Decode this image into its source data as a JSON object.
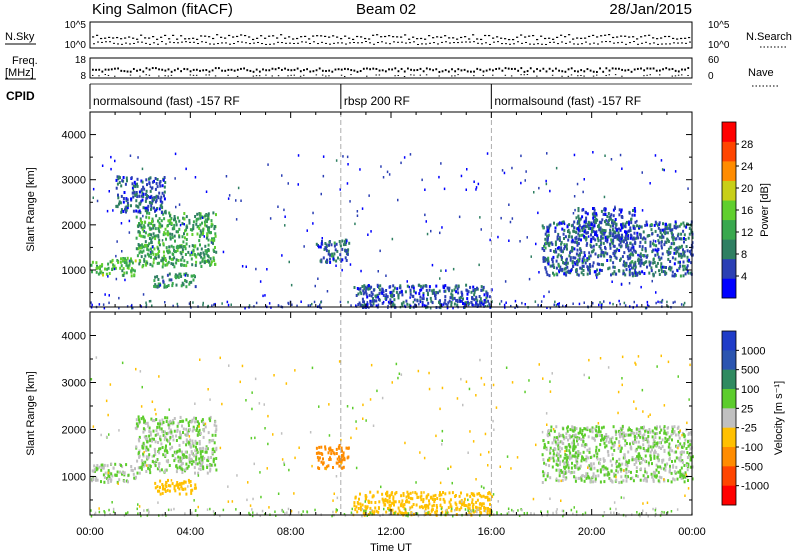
{
  "header": {
    "station": "King Salmon (fitACF)",
    "beam": "Beam 02",
    "date": "28/Jan/2015"
  },
  "strips": {
    "nsky_label": "N.Sky",
    "nsky_ticks": [
      "10^5",
      "10^0"
    ],
    "nsearch_label": "N.Search",
    "nsearch_ticks": [
      "10^5",
      "10^0"
    ],
    "freq_label_line1": "Freq.",
    "freq_label_line2": "[MHz]",
    "freq_ticks": [
      "18",
      "8"
    ],
    "nave_label": "Nave",
    "nave_ticks": [
      "60",
      "0"
    ],
    "cpid_label": "CPID",
    "cpid_segments": [
      {
        "label": "normalsound (fast) -157 RF",
        "start_hour": 0,
        "end_hour": 10
      },
      {
        "label": "rbsp 200 RF",
        "start_hour": 10,
        "end_hour": 16
      },
      {
        "label": "normalsound (fast) -157 RF",
        "start_hour": 16,
        "end_hour": 24
      }
    ]
  },
  "chart_data": [
    {
      "type": "heatmap",
      "panel": "power",
      "xlabel": "Time UT",
      "ylabel": "Slant Range [km]",
      "xlim": [
        0,
        24
      ],
      "ylim": [
        180,
        4500
      ],
      "x_ticks": [
        "00:00",
        "04:00",
        "08:00",
        "12:00",
        "16:00",
        "20:00",
        "00:00"
      ],
      "y_ticks": [
        1000,
        2000,
        3000,
        4000
      ],
      "colorbar": {
        "label": "Power [dB]",
        "ticks": [
          "28",
          "24",
          "20",
          "16",
          "12",
          "8",
          "4"
        ],
        "range": [
          0,
          32
        ],
        "colors": [
          "#0000ff",
          "#2b3fb4",
          "#2f7f62",
          "#39a84e",
          "#60cf2e",
          "#c8cf18",
          "#ff8c00",
          "#ff4500",
          "#ff0000"
        ]
      },
      "echo_regions": [
        {
          "t_start": 0.0,
          "t_end": 1.8,
          "range_min": 900,
          "range_max": 1300,
          "power_db": 14
        },
        {
          "t_start": 1.8,
          "t_end": 5.0,
          "range_min": 1100,
          "range_max": 2300,
          "power_db": 12
        },
        {
          "t_start": 1.0,
          "t_end": 3.0,
          "range_min": 2300,
          "range_max": 3100,
          "power_db": 6
        },
        {
          "t_start": 2.5,
          "t_end": 4.2,
          "range_min": 650,
          "range_max": 950,
          "power_db": 10
        },
        {
          "t_start": 9.0,
          "t_end": 10.3,
          "range_min": 1200,
          "range_max": 1700,
          "power_db": 7
        },
        {
          "t_start": 10.5,
          "t_end": 16.0,
          "range_min": 200,
          "range_max": 700,
          "power_db": 6
        },
        {
          "t_start": 18.0,
          "t_end": 24.0,
          "range_min": 900,
          "range_max": 2100,
          "power_db": 7
        },
        {
          "t_start": 19.3,
          "t_end": 21.7,
          "range_min": 1700,
          "range_max": 2400,
          "power_db": 6
        }
      ]
    },
    {
      "type": "heatmap",
      "panel": "velocity",
      "xlabel": "Time UT",
      "ylabel": "Slant Range [km]",
      "xlim": [
        0,
        24
      ],
      "ylim": [
        180,
        4500
      ],
      "x_ticks": [
        "00:00",
        "04:00",
        "08:00",
        "12:00",
        "16:00",
        "20:00",
        "00:00"
      ],
      "y_ticks": [
        1000,
        2000,
        3000,
        4000
      ],
      "colorbar": {
        "label": "Velocity [m s⁻¹]",
        "ticks": [
          "1000",
          "500",
          "100",
          "25",
          "-25",
          "-100",
          "-500",
          "-1000"
        ],
        "colors": [
          "#1f3cc8",
          "#2b55b0",
          "#2f8a60",
          "#5ccc2c",
          "#c0c0c0",
          "#ffc000",
          "#ff8c00",
          "#ff4500",
          "#ff0000"
        ]
      },
      "echo_regions": [
        {
          "t_start": 0.0,
          "t_end": 1.8,
          "range_min": 900,
          "range_max": 1300,
          "velocity": 0
        },
        {
          "t_start": 1.8,
          "t_end": 5.0,
          "range_min": 1100,
          "range_max": 2300,
          "velocity": 0
        },
        {
          "t_start": 2.5,
          "t_end": 4.2,
          "range_min": 650,
          "range_max": 950,
          "velocity": -150
        },
        {
          "t_start": 9.0,
          "t_end": 10.3,
          "range_min": 1200,
          "range_max": 1700,
          "velocity": -400
        },
        {
          "t_start": 10.5,
          "t_end": 16.0,
          "range_min": 200,
          "range_max": 700,
          "velocity": -150
        },
        {
          "t_start": 18.0,
          "t_end": 24.0,
          "range_min": 900,
          "range_max": 2100,
          "velocity": 0
        }
      ]
    }
  ]
}
